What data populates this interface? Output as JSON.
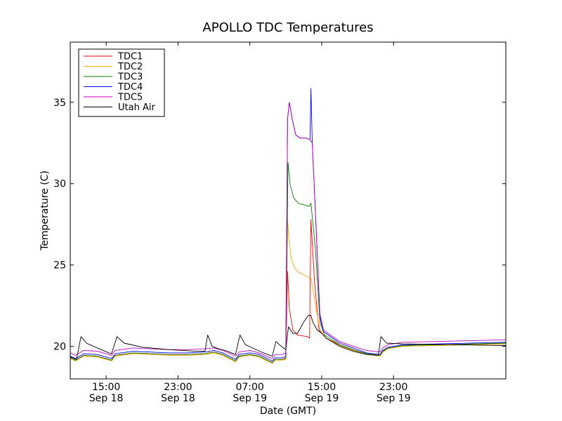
{
  "chart_data": {
    "type": "line",
    "title": "APOLLO TDC Temperatures",
    "xlabel": "Date (GMT)",
    "ylabel": "Temperature (C)",
    "ylim": [
      18,
      38.7
    ],
    "xlim": [
      11.0,
      59.5
    ],
    "x_units": "hours since 00:00 GMT Sep 18",
    "legend_position": "top-left",
    "grid": false,
    "y_ticks": [
      {
        "value": 20,
        "label": "20"
      },
      {
        "value": 25,
        "label": "25"
      },
      {
        "value": 30,
        "label": "30"
      },
      {
        "value": 35,
        "label": "35"
      }
    ],
    "x_ticks": [
      {
        "value": 15,
        "label": "15:00",
        "sublabel": "Sep 18"
      },
      {
        "value": 23,
        "label": "23:00",
        "sublabel": "Sep 18"
      },
      {
        "value": 31,
        "label": "07:00",
        "sublabel": "Sep 19"
      },
      {
        "value": 39,
        "label": "15:00",
        "sublabel": "Sep 19"
      },
      {
        "value": 47,
        "label": "23:00",
        "sublabel": "Sep 19"
      }
    ],
    "series": [
      {
        "name": "TDC1",
        "color": "#ff0000",
        "points": [
          [
            11,
            19.3
          ],
          [
            11.6,
            19.15
          ],
          [
            12.5,
            19.45
          ],
          [
            14,
            19.4
          ],
          [
            15.3,
            19.2
          ],
          [
            15.6,
            19.15
          ],
          [
            16,
            19.45
          ],
          [
            18,
            19.6
          ],
          [
            22,
            19.5
          ],
          [
            24,
            19.5
          ],
          [
            26,
            19.55
          ],
          [
            27,
            19.65
          ],
          [
            28,
            19.5
          ],
          [
            29.4,
            19.1
          ],
          [
            29.8,
            19.4
          ],
          [
            31,
            19.5
          ],
          [
            32,
            19.4
          ],
          [
            33.5,
            19.0
          ],
          [
            33.8,
            19.2
          ],
          [
            34.6,
            19.2
          ],
          [
            35,
            19.25
          ],
          [
            35.2,
            24.6
          ],
          [
            35.4,
            22.3
          ],
          [
            35.8,
            21.0
          ],
          [
            36.3,
            20.7
          ],
          [
            36.8,
            20.65
          ],
          [
            37.4,
            20.6
          ],
          [
            37.65,
            20.5
          ],
          [
            37.8,
            27.8
          ],
          [
            38.2,
            24.0
          ],
          [
            38.7,
            21.0
          ],
          [
            39.5,
            20.5
          ],
          [
            41,
            20.1
          ],
          [
            42.5,
            19.8
          ],
          [
            44,
            19.55
          ],
          [
            45.5,
            19.45
          ],
          [
            45.8,
            19.7
          ],
          [
            46.4,
            19.9
          ],
          [
            48,
            20.05
          ],
          [
            59.5,
            20.2
          ]
        ]
      },
      {
        "name": "TDC2",
        "color": "#ffa500",
        "points": [
          [
            11,
            19.25
          ],
          [
            11.6,
            19.1
          ],
          [
            12.5,
            19.4
          ],
          [
            14,
            19.35
          ],
          [
            15.3,
            19.15
          ],
          [
            15.6,
            19.1
          ],
          [
            16,
            19.4
          ],
          [
            18,
            19.55
          ],
          [
            22,
            19.45
          ],
          [
            24,
            19.45
          ],
          [
            26,
            19.5
          ],
          [
            27,
            19.6
          ],
          [
            28,
            19.45
          ],
          [
            29.4,
            19.05
          ],
          [
            29.8,
            19.35
          ],
          [
            31,
            19.45
          ],
          [
            32,
            19.35
          ],
          [
            33.5,
            18.95
          ],
          [
            33.8,
            19.15
          ],
          [
            34.6,
            19.15
          ],
          [
            35,
            19.2
          ],
          [
            35.2,
            27.8
          ],
          [
            35.35,
            26.6
          ],
          [
            35.6,
            25.4
          ],
          [
            35.9,
            24.9
          ],
          [
            36.3,
            24.6
          ],
          [
            37,
            24.4
          ],
          [
            37.6,
            24.2
          ],
          [
            37.8,
            24.2
          ],
          [
            38.3,
            22.6
          ],
          [
            38.8,
            21.0
          ],
          [
            39.5,
            20.5
          ],
          [
            41,
            20.05
          ],
          [
            42.5,
            19.75
          ],
          [
            44,
            19.5
          ],
          [
            45.5,
            19.4
          ],
          [
            45.8,
            19.65
          ],
          [
            46.4,
            19.85
          ],
          [
            48,
            20.0
          ],
          [
            59.5,
            20.15
          ]
        ]
      },
      {
        "name": "TDC3",
        "color": "#008000",
        "points": [
          [
            11,
            19.3
          ],
          [
            11.6,
            19.15
          ],
          [
            12.5,
            19.45
          ],
          [
            14,
            19.4
          ],
          [
            15.3,
            19.2
          ],
          [
            15.6,
            19.15
          ],
          [
            16,
            19.45
          ],
          [
            18,
            19.6
          ],
          [
            22,
            19.5
          ],
          [
            24,
            19.5
          ],
          [
            26,
            19.55
          ],
          [
            27,
            19.65
          ],
          [
            28,
            19.5
          ],
          [
            29.4,
            19.1
          ],
          [
            29.8,
            19.4
          ],
          [
            31,
            19.5
          ],
          [
            32,
            19.4
          ],
          [
            33.5,
            19.0
          ],
          [
            33.8,
            19.2
          ],
          [
            34.6,
            19.2
          ],
          [
            35,
            19.3
          ],
          [
            35.25,
            31.3
          ],
          [
            35.5,
            29.9
          ],
          [
            35.9,
            29.1
          ],
          [
            36.4,
            28.8
          ],
          [
            37,
            28.7
          ],
          [
            37.6,
            28.6
          ],
          [
            37.8,
            28.8
          ],
          [
            38.3,
            26.0
          ],
          [
            38.8,
            21.5
          ],
          [
            39.3,
            20.7
          ],
          [
            41,
            20.1
          ],
          [
            42.5,
            19.8
          ],
          [
            44,
            19.55
          ],
          [
            45.5,
            19.45
          ],
          [
            45.8,
            19.7
          ],
          [
            46.4,
            19.9
          ],
          [
            48,
            20.05
          ],
          [
            59.5,
            20.2
          ]
        ]
      },
      {
        "name": "TDC4",
        "color": "#0000ff",
        "points": [
          [
            11,
            19.4
          ],
          [
            11.6,
            19.25
          ],
          [
            12.5,
            19.55
          ],
          [
            14,
            19.5
          ],
          [
            15.3,
            19.3
          ],
          [
            15.6,
            19.25
          ],
          [
            16,
            19.55
          ],
          [
            18,
            19.7
          ],
          [
            22,
            19.6
          ],
          [
            24,
            19.6
          ],
          [
            26,
            19.65
          ],
          [
            27,
            19.75
          ],
          [
            28,
            19.6
          ],
          [
            29.4,
            19.2
          ],
          [
            29.8,
            19.5
          ],
          [
            31,
            19.6
          ],
          [
            32,
            19.5
          ],
          [
            33.5,
            19.1
          ],
          [
            33.8,
            19.3
          ],
          [
            34.6,
            19.3
          ],
          [
            35,
            19.4
          ],
          [
            35.2,
            34.0
          ],
          [
            35.4,
            35.0
          ],
          [
            35.7,
            34.0
          ],
          [
            36.1,
            33.0
          ],
          [
            36.6,
            32.8
          ],
          [
            37.3,
            32.8
          ],
          [
            37.7,
            32.7
          ],
          [
            37.8,
            35.85
          ],
          [
            37.95,
            32.5
          ],
          [
            38.4,
            27.0
          ],
          [
            38.8,
            21.8
          ],
          [
            39.2,
            20.9
          ],
          [
            41,
            20.2
          ],
          [
            42.5,
            19.9
          ],
          [
            44,
            19.6
          ],
          [
            45.5,
            19.5
          ],
          [
            45.8,
            19.75
          ],
          [
            46.4,
            19.95
          ],
          [
            48,
            20.1
          ],
          [
            59.5,
            20.25
          ]
        ]
      },
      {
        "name": "TDC5",
        "color": "#bf00bf",
        "points": [
          [
            11,
            19.6
          ],
          [
            11.6,
            19.45
          ],
          [
            12.5,
            19.75
          ],
          [
            14,
            19.7
          ],
          [
            15.3,
            19.5
          ],
          [
            15.6,
            19.45
          ],
          [
            16,
            19.75
          ],
          [
            18,
            19.9
          ],
          [
            22,
            19.8
          ],
          [
            24,
            19.8
          ],
          [
            26,
            19.85
          ],
          [
            27,
            19.9
          ],
          [
            28,
            19.75
          ],
          [
            29.4,
            19.4
          ],
          [
            29.8,
            19.65
          ],
          [
            31,
            19.75
          ],
          [
            32,
            19.6
          ],
          [
            33.5,
            19.25
          ],
          [
            33.8,
            19.5
          ],
          [
            34.6,
            19.5
          ],
          [
            35,
            19.6
          ],
          [
            35.2,
            34.0
          ],
          [
            35.4,
            35.0
          ],
          [
            35.7,
            34.0
          ],
          [
            36.1,
            33.0
          ],
          [
            36.6,
            32.8
          ],
          [
            37.3,
            32.8
          ],
          [
            37.7,
            32.7
          ],
          [
            37.95,
            32.5
          ],
          [
            38.4,
            27.0
          ],
          [
            38.8,
            22.0
          ],
          [
            39.2,
            21.0
          ],
          [
            41,
            20.3
          ],
          [
            42.5,
            20.0
          ],
          [
            44,
            19.75
          ],
          [
            45.5,
            19.65
          ],
          [
            45.8,
            19.9
          ],
          [
            46.4,
            20.1
          ],
          [
            48,
            20.25
          ],
          [
            59.5,
            20.4
          ]
        ]
      },
      {
        "name": "Utah Air",
        "color": "#000000",
        "points": [
          [
            11,
            19.35
          ],
          [
            11.7,
            19.2
          ],
          [
            12.2,
            20.6
          ],
          [
            12.8,
            20.2
          ],
          [
            14,
            19.9
          ],
          [
            15.3,
            19.6
          ],
          [
            15.6,
            19.55
          ],
          [
            16.2,
            20.6
          ],
          [
            17,
            20.2
          ],
          [
            19,
            19.95
          ],
          [
            22,
            19.8
          ],
          [
            25,
            19.7
          ],
          [
            26,
            19.7
          ],
          [
            26.3,
            20.7
          ],
          [
            26.8,
            20.0
          ],
          [
            27.5,
            19.85
          ],
          [
            28.5,
            19.7
          ],
          [
            29.4,
            19.5
          ],
          [
            29.9,
            20.7
          ],
          [
            30.5,
            20.1
          ],
          [
            31.5,
            19.85
          ],
          [
            32.5,
            19.6
          ],
          [
            33.5,
            19.4
          ],
          [
            33.9,
            20.3
          ],
          [
            34.5,
            20.0
          ],
          [
            35,
            19.8
          ],
          [
            35.3,
            21.2
          ],
          [
            35.8,
            20.8
          ],
          [
            36.3,
            20.8
          ],
          [
            37,
            21.5
          ],
          [
            37.5,
            21.9
          ],
          [
            37.8,
            21.9
          ],
          [
            38.0,
            21.5
          ],
          [
            38.5,
            21.0
          ],
          [
            39,
            20.8
          ],
          [
            39.5,
            20.5
          ],
          [
            41,
            20.0
          ],
          [
            42.5,
            19.7
          ],
          [
            44,
            19.5
          ],
          [
            45.3,
            19.45
          ],
          [
            45.6,
            20.6
          ],
          [
            46.2,
            20.2
          ],
          [
            48,
            20.15
          ],
          [
            59.5,
            20.05
          ]
        ]
      }
    ]
  }
}
